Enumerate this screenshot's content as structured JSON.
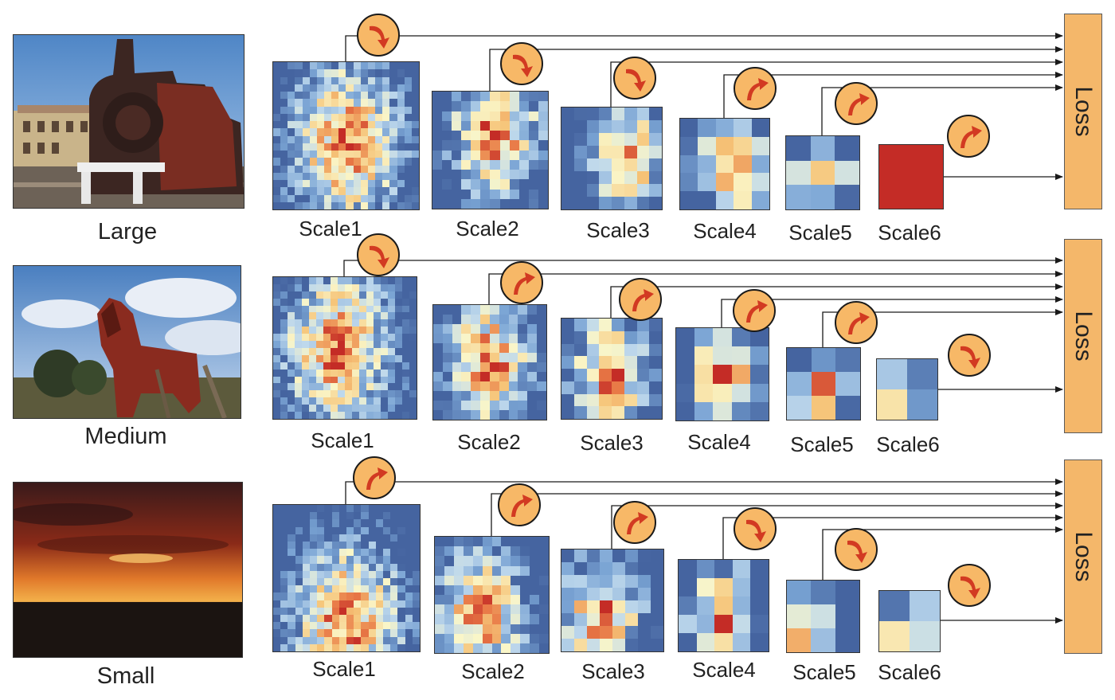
{
  "colors": {
    "loss_fill": "#f4b76a",
    "badge_fill": "#f7b867",
    "arrow_red": "#d23a22",
    "heat_low": "#4f6ea8",
    "heat_mid": "#fbf6c6",
    "heat_high": "#c8302a"
  },
  "rows": [
    {
      "size_label": "Large",
      "photo_icon": "steam-locomotive-photo",
      "loss_label": "Loss",
      "scales": [
        {
          "label": "Scale1",
          "direction": "down",
          "grid": 20
        },
        {
          "label": "Scale2",
          "direction": "down",
          "grid": 12
        },
        {
          "label": "Scale3",
          "direction": "down",
          "grid": 8
        },
        {
          "label": "Scale4",
          "direction": "up",
          "grid": 5
        },
        {
          "label": "Scale5",
          "direction": "up",
          "grid": 3
        },
        {
          "label": "Scale6",
          "direction": "up",
          "grid": 1
        }
      ]
    },
    {
      "size_label": "Medium",
      "photo_icon": "horse-photo",
      "loss_label": "Loss",
      "scales": [
        {
          "label": "Scale1",
          "direction": "down",
          "grid": 20
        },
        {
          "label": "Scale2",
          "direction": "up",
          "grid": 12
        },
        {
          "label": "Scale3",
          "direction": "up",
          "grid": 8
        },
        {
          "label": "Scale4",
          "direction": "up",
          "grid": 5
        },
        {
          "label": "Scale5",
          "direction": "up",
          "grid": 3
        },
        {
          "label": "Scale6",
          "direction": "down",
          "grid": 2
        }
      ]
    },
    {
      "size_label": "Small",
      "photo_icon": "sunset-photo",
      "loss_label": "Loss",
      "scales": [
        {
          "label": "Scale1",
          "direction": "up",
          "grid": 20
        },
        {
          "label": "Scale2",
          "direction": "up",
          "grid": 12
        },
        {
          "label": "Scale3",
          "direction": "up",
          "grid": 8
        },
        {
          "label": "Scale4",
          "direction": "down",
          "grid": 5
        },
        {
          "label": "Scale5",
          "direction": "down",
          "grid": 3
        },
        {
          "label": "Scale6",
          "direction": "down",
          "grid": 2
        }
      ]
    }
  ]
}
